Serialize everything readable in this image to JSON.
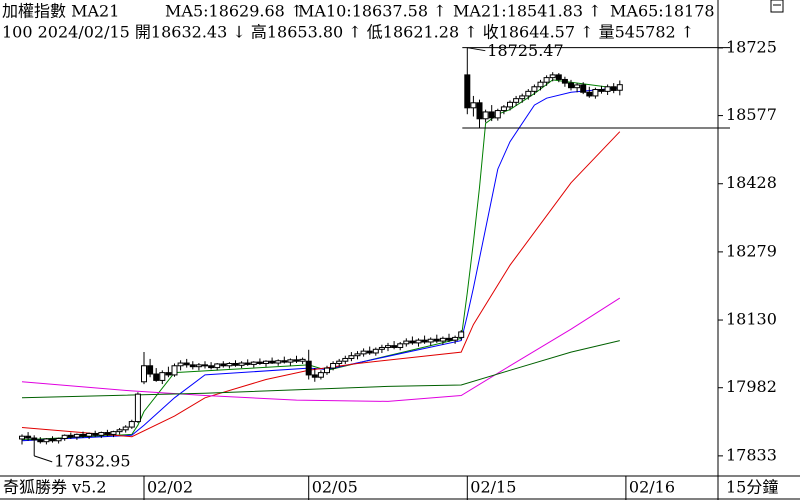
{
  "chart_data": {
    "type": "candlestick",
    "title": "加權指數 MA21",
    "ma_labels": [
      {
        "text": "MA5:18629.68 ↑",
        "color": "#007f00"
      },
      {
        "text": "MA10:18637.58 ↑",
        "color": "#0000ff"
      },
      {
        "text": "MA21:18541.83 ↑",
        "color": "#e00000"
      },
      {
        "text": "MA65:18178",
        "color": "#e000e0"
      }
    ],
    "info": "100 2024/02/15 開18632.43 ↓ 高18653.80 ↑ 低18621.28 ↑ 收18644.57 ↑ 量545782 ↑",
    "footer_left": "奇狐勝券 v5.2",
    "footer_right": "15分鐘",
    "high_label": "18725.47",
    "low_label": "17832.95",
    "ylim": [
      17789,
      18786
    ],
    "yticks": [
      17833,
      17982,
      18130,
      18279,
      18428,
      18577,
      18725
    ],
    "categories": [
      null,
      null,
      null,
      null,
      null,
      null,
      null,
      null,
      null,
      null,
      null,
      null,
      null,
      null,
      null,
      null,
      null,
      null,
      null,
      null,
      "02/02",
      null,
      null,
      null,
      null,
      null,
      null,
      null,
      null,
      null,
      null,
      null,
      null,
      null,
      null,
      null,
      null,
      null,
      null,
      null,
      null,
      null,
      null,
      null,
      null,
      null,
      null,
      "02/05",
      null,
      null,
      null,
      null,
      null,
      null,
      null,
      null,
      null,
      null,
      null,
      null,
      null,
      null,
      null,
      null,
      null,
      null,
      null,
      null,
      null,
      null,
      null,
      null,
      null,
      "02/15",
      null,
      null,
      null,
      null,
      null,
      null,
      null,
      null,
      null,
      null,
      null,
      null,
      null,
      null,
      null,
      null,
      null,
      null,
      null,
      null,
      null,
      null,
      null,
      null,
      null,
      "02/16",
      null
    ],
    "up_color": "#ffffff",
    "down_color": "#000000",
    "candles": [
      [
        17870,
        17880,
        17858,
        17876
      ],
      [
        17876,
        17885,
        17866,
        17872
      ],
      [
        17872,
        17878,
        17832.95,
        17868
      ],
      [
        17868,
        17874,
        17860,
        17864
      ],
      [
        17864,
        17872,
        17858,
        17870
      ],
      [
        17870,
        17876,
        17862,
        17866
      ],
      [
        17866,
        17873,
        17860,
        17871
      ],
      [
        17871,
        17880,
        17866,
        17878
      ],
      [
        17878,
        17884,
        17870,
        17874
      ],
      [
        17874,
        17882,
        17868,
        17880
      ],
      [
        17880,
        17886,
        17872,
        17876
      ],
      [
        17876,
        17884,
        17870,
        17882
      ],
      [
        17882,
        17888,
        17874,
        17878
      ],
      [
        17878,
        17886,
        17872,
        17884
      ],
      [
        17884,
        17890,
        17876,
        17880
      ],
      [
        17880,
        17888,
        17874,
        17886
      ],
      [
        17886,
        17894,
        17880,
        17890
      ],
      [
        17890,
        17900,
        17884,
        17896
      ],
      [
        17896,
        17912,
        17892,
        17908
      ],
      [
        17908,
        17972,
        17905,
        17968
      ],
      [
        17995,
        18060,
        17990,
        18030
      ],
      [
        18030,
        18045,
        18005,
        18012
      ],
      [
        18012,
        18025,
        17995,
        17998
      ],
      [
        17998,
        18020,
        17990,
        18015
      ],
      [
        18015,
        18028,
        18005,
        18010
      ],
      [
        18010,
        18035,
        18006,
        18030
      ],
      [
        18030,
        18042,
        18020,
        18036
      ],
      [
        18036,
        18045,
        18026,
        18032
      ],
      [
        18032,
        18040,
        18022,
        18028
      ],
      [
        18028,
        18036,
        18020,
        18032
      ],
      [
        18032,
        18040,
        18024,
        18030
      ],
      [
        18030,
        18038,
        18022,
        18026
      ],
      [
        18026,
        18036,
        18020,
        18034
      ],
      [
        18034,
        18040,
        18026,
        18030
      ],
      [
        18030,
        18038,
        18024,
        18035
      ],
      [
        18035,
        18042,
        18028,
        18031
      ],
      [
        18031,
        18040,
        18025,
        18036
      ],
      [
        18036,
        18044,
        18030,
        18033
      ],
      [
        18033,
        18040,
        18026,
        18038
      ],
      [
        18038,
        18046,
        18032,
        18035
      ],
      [
        18035,
        18042,
        18028,
        18040
      ],
      [
        18040,
        18048,
        18034,
        18036
      ],
      [
        18036,
        18044,
        18030,
        18041
      ],
      [
        18041,
        18050,
        18035,
        18038
      ],
      [
        18038,
        18046,
        18030,
        18043
      ],
      [
        18043,
        18052,
        18036,
        18040
      ],
      [
        18040,
        18048,
        18034,
        18044
      ],
      [
        18040,
        18065,
        18000,
        18010
      ],
      [
        18010,
        18025,
        17995,
        18005
      ],
      [
        18005,
        18020,
        18000,
        18015
      ],
      [
        18015,
        18030,
        18010,
        18025
      ],
      [
        18025,
        18040,
        18020,
        18035
      ],
      [
        18035,
        18045,
        18028,
        18040
      ],
      [
        18040,
        18052,
        18034,
        18046
      ],
      [
        18046,
        18060,
        18040,
        18052
      ],
      [
        18052,
        18062,
        18044,
        18056
      ],
      [
        18056,
        18068,
        18050,
        18062
      ],
      [
        18062,
        18072,
        18054,
        18058
      ],
      [
        18058,
        18070,
        18052,
        18066
      ],
      [
        18066,
        18076,
        18058,
        18070
      ],
      [
        18070,
        18080,
        18062,
        18074
      ],
      [
        18074,
        18084,
        18066,
        18070
      ],
      [
        18070,
        18082,
        18064,
        18078
      ],
      [
        18078,
        18090,
        18072,
        18084
      ],
      [
        18084,
        18094,
        18076,
        18080
      ],
      [
        18080,
        18090,
        18072,
        18086
      ],
      [
        18086,
        18096,
        18078,
        18082
      ],
      [
        18082,
        18092,
        18074,
        18088
      ],
      [
        18088,
        18098,
        18080,
        18084
      ],
      [
        18084,
        18094,
        18076,
        18090
      ],
      [
        18090,
        18100,
        18082,
        18086
      ],
      [
        18086,
        18096,
        18078,
        18092
      ],
      [
        18092,
        18108,
        18086,
        18104
      ],
      [
        18666,
        18725.47,
        18580,
        18594
      ],
      [
        18594,
        18620,
        18575,
        18605
      ],
      [
        18605,
        18612,
        18550,
        18570
      ],
      [
        18570,
        18590,
        18562,
        18585
      ],
      [
        18585,
        18600,
        18565,
        18572
      ],
      [
        18572,
        18592,
        18566,
        18588
      ],
      [
        18588,
        18600,
        18580,
        18596
      ],
      [
        18596,
        18610,
        18588,
        18606
      ],
      [
        18606,
        18620,
        18598,
        18614
      ],
      [
        18614,
        18625,
        18605,
        18620
      ],
      [
        18620,
        18635,
        18612,
        18630
      ],
      [
        18630,
        18645,
        18622,
        18640
      ],
      [
        18640,
        18655,
        18632,
        18650
      ],
      [
        18650,
        18665,
        18642,
        18660
      ],
      [
        18660,
        18672,
        18652,
        18666
      ],
      [
        18666,
        18670,
        18650,
        18656
      ],
      [
        18656,
        18662,
        18640,
        18648
      ],
      [
        18648,
        18655,
        18632,
        18638
      ],
      [
        18638,
        18648,
        18628,
        18644
      ],
      [
        18644,
        18650,
        18624,
        18628
      ],
      [
        18628,
        18640,
        18616,
        18620
      ],
      [
        18620,
        18638,
        18614,
        18634
      ],
      [
        18634,
        18642,
        18625,
        18630
      ],
      [
        18630,
        18645,
        18622,
        18640
      ],
      [
        18640,
        18648,
        18626,
        18632
      ],
      [
        18632.43,
        18653.8,
        18621.28,
        18644.57
      ],
      null,
      null
    ],
    "lines": [
      {
        "color": "#007f00",
        "x": [
          0,
          18,
          19,
          20,
          25,
          47,
          50,
          72,
          73,
          74,
          75,
          76,
          78,
          80,
          84,
          87,
          90,
          98
        ],
        "values": [
          17868,
          17880,
          17900,
          17930,
          18015,
          18032,
          18020,
          18090,
          18190,
          18300,
          18420,
          18560,
          18580,
          18590,
          18625,
          18655,
          18650,
          18636
        ]
      },
      {
        "color": "#0000ff",
        "x": [
          0,
          18,
          20,
          25,
          30,
          47,
          50,
          72,
          73,
          74,
          76,
          78,
          80,
          84,
          86,
          90,
          98
        ],
        "values": [
          17866,
          17878,
          17900,
          17960,
          18010,
          18025,
          18022,
          18085,
          18140,
          18200,
          18330,
          18460,
          18520,
          18600,
          18615,
          18628,
          18638
        ]
      },
      {
        "color": "#e00000",
        "x": [
          0,
          18,
          25,
          30,
          40,
          47,
          55,
          72,
          74,
          80,
          90,
          98
        ],
        "values": [
          17895,
          17875,
          17920,
          17960,
          18000,
          18020,
          18035,
          18060,
          18120,
          18250,
          18430,
          18541.83
        ]
      },
      {
        "color": "#e000e0",
        "x": [
          0,
          18,
          30,
          45,
          60,
          72,
          80,
          90,
          98
        ],
        "values": [
          17995,
          17975,
          17965,
          17955,
          17952,
          17965,
          18030,
          18110,
          18178
        ]
      },
      {
        "color": "#006000",
        "x": [
          0,
          30,
          60,
          72,
          80,
          90,
          98
        ],
        "values": [
          17960,
          17970,
          17985,
          17988,
          18020,
          18060,
          18085
        ]
      }
    ],
    "range_high": [
      73,
      1
    ],
    "range_low": [
      75,
      2
    ]
  }
}
